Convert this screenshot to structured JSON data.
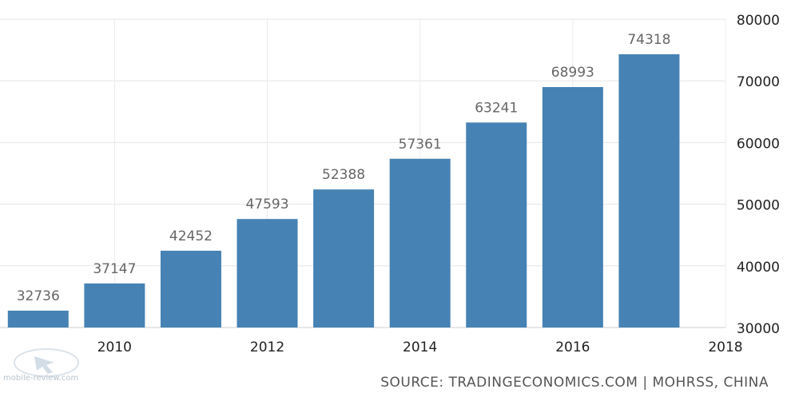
{
  "chart_data": {
    "type": "bar",
    "x": [
      2009,
      2010,
      2011,
      2012,
      2013,
      2014,
      2015,
      2016,
      2017
    ],
    "values": [
      32736,
      37147,
      42452,
      47593,
      52388,
      57361,
      63241,
      68993,
      74318
    ],
    "data_labels": [
      "32736",
      "37147",
      "42452",
      "47593",
      "52388",
      "57361",
      "63241",
      "68993",
      "74318"
    ],
    "x_tick_labels": [
      "2010",
      "2012",
      "2014",
      "2016",
      "2018"
    ],
    "x_ticks": [
      2010,
      2012,
      2014,
      2016,
      2018
    ],
    "y_tick_labels": [
      "30000",
      "40000",
      "50000",
      "60000",
      "70000",
      "80000"
    ],
    "y_ticks": [
      30000,
      40000,
      50000,
      60000,
      70000,
      80000
    ],
    "ylim": [
      30000,
      80000
    ],
    "y_axis_side": "right",
    "grid": true,
    "bar_color": "#4682b4"
  },
  "source_text": "SOURCE: TRADINGECONOMICS.COM | MOHRSS, CHINA",
  "watermark": "mobile-review.com"
}
